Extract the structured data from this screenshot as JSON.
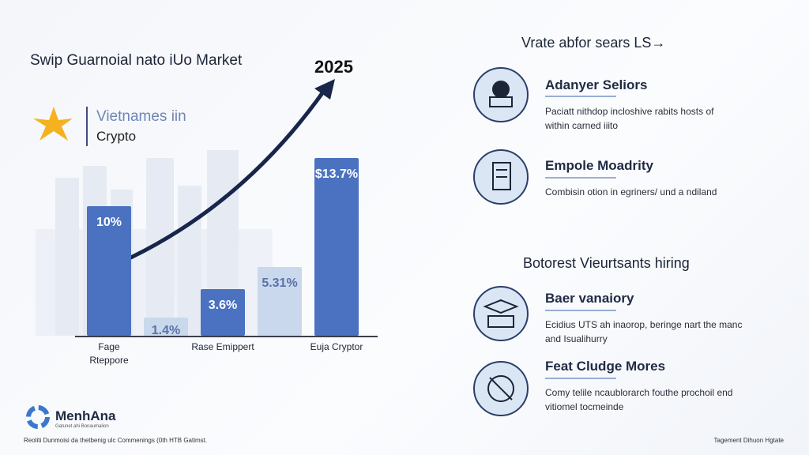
{
  "header": {
    "title": "Swip Guarnoial nato iUo Market",
    "badge_line1": "Vietnames iin",
    "badge_line2": "Crypto"
  },
  "chart_data": {
    "type": "bar",
    "annotation": "2025",
    "categories": [
      "Fage Rteppore",
      null,
      "Rase Emippert",
      null,
      "Euja Cryptor"
    ],
    "values": [
      10,
      1.4,
      3.6,
      5.31,
      13.7
    ],
    "value_labels": [
      "10%",
      "1.4%",
      "3.6%",
      "5.31%",
      "$13.7%"
    ],
    "colors": [
      "#4a72c0",
      "#c9d8ec",
      "#4a72c0",
      "#c9d8ec",
      "#4a72c0"
    ]
  },
  "sections": [
    {
      "heading": "Vrate abfor sears LS→",
      "items": [
        {
          "title": "Adanyer Seliors",
          "desc": [
            "Paciatt nithdop incloshive rabits hosts of",
            "within carned iiito"
          ]
        },
        {
          "title": "Empole Moadrity",
          "desc": [
            "Combisin otion in egriners/ und a ndiland"
          ]
        }
      ]
    },
    {
      "heading": "Botorest Vieurtsants hiring",
      "items": [
        {
          "title": "Baer vanaiory",
          "desc": [
            "Ecidius UTS ah inaorop, beringe nart the manc",
            "and Isualihurry"
          ]
        },
        {
          "title": "Feat Cludge Mores",
          "desc": [
            "Comy telile ncaublorarch fouthe prochoil end",
            "vitiomel tocmeinde"
          ]
        }
      ]
    }
  ],
  "footer": {
    "brand": "MenhAna",
    "tagline": "Gatunet ahi Bonaumalion",
    "left": "Reoliti Dunmoisi da thetbenig ulc Commenings (0th HTB Gatimst.",
    "right": "Tagement Dihuon Hgtate"
  }
}
